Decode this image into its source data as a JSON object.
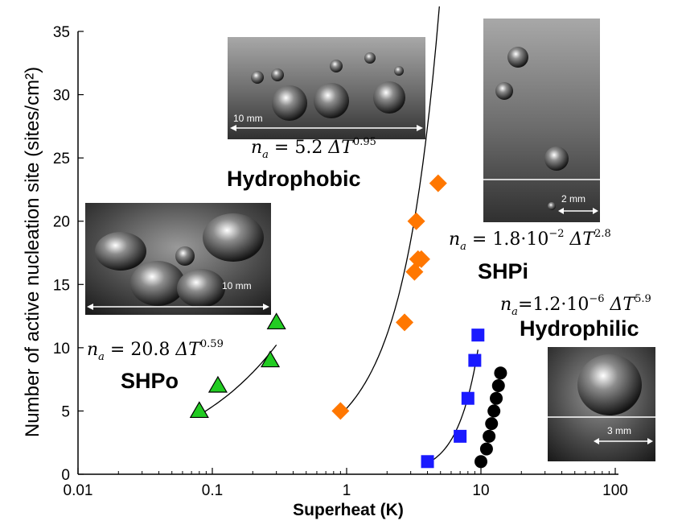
{
  "chart_data": {
    "type": "scatter",
    "xlabel": "Superheat (K)",
    "ylabel": "Number of active nucleation site (sites/cm²)",
    "xscale": "log",
    "xlim": [
      0.01,
      100
    ],
    "ylim": [
      0,
      35
    ],
    "x_ticks": [
      "0.01",
      "0.1",
      "1",
      "10",
      "100"
    ],
    "y_ticks": [
      "0",
      "5",
      "10",
      "15",
      "20",
      "25",
      "30",
      "35"
    ],
    "grid": false,
    "series": [
      {
        "name": "SHPo",
        "marker": "triangle",
        "color": "#22cc22",
        "x": [
          0.08,
          0.11,
          0.27,
          0.3
        ],
        "y": [
          5,
          7,
          9,
          12
        ],
        "fit": {
          "coef": "20.8",
          "exp": "0.59",
          "a": 20.8,
          "b": 0.59,
          "xrange": [
            0.08,
            0.3
          ]
        },
        "label": "SHPo"
      },
      {
        "name": "Hydrophobic",
        "marker": "diamond",
        "color": "#ff7700",
        "x": [
          0.9,
          2.7,
          3.2,
          3.4,
          3.6,
          3.3,
          4.8
        ],
        "y": [
          5,
          12,
          16,
          17,
          17,
          20,
          23
        ],
        "fit": {
          "coef": "5.2",
          "exp": "0.95",
          "a": 5.2,
          "b": 0.95,
          "xrange": [
            0.9,
            4.9
          ],
          "type": "quadratic",
          "k": 1.4
        },
        "label": "Hydrophobic"
      },
      {
        "name": "SHPi",
        "marker": "square",
        "color": "#1a1aff",
        "x": [
          4,
          7,
          8,
          9,
          9.5
        ],
        "y": [
          1,
          3,
          6,
          9,
          11
        ],
        "fit": {
          "coef": "1.8",
          "coef_exp": "−2",
          "exp": "2.8",
          "a": 0.018,
          "b": 2.8,
          "xrange": [
            4,
            9.5
          ]
        },
        "label": "SHPi"
      },
      {
        "name": "Hydrophilic",
        "marker": "circle",
        "color": "#000000",
        "x": [
          10,
          11,
          11.5,
          12,
          12.5,
          13,
          13.5,
          14
        ],
        "y": [
          1,
          2,
          3,
          4,
          5,
          6,
          7,
          8
        ],
        "fit": {
          "coef": "1.2",
          "coef_exp": "−6",
          "exp": "5.9"
        },
        "label": "Hydrophilic"
      }
    ],
    "equation_prefix": "n",
    "equation_sub": "a",
    "equation_delta": "ΔT"
  },
  "photos": {
    "hydrophobic_scale": "10 mm",
    "shpo_scale": "10 mm",
    "shpi_scale": "2 mm",
    "hydrophilic_scale": "3 mm"
  }
}
